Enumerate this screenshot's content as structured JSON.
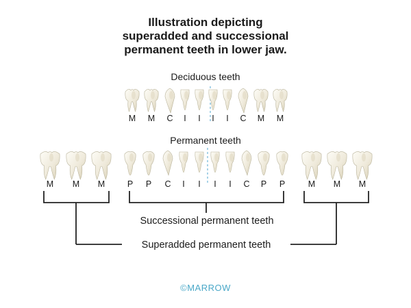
{
  "title": {
    "line1": "Illustration depicting",
    "line2": "superadded and successional",
    "line3": "permanent teeth in lower jaw."
  },
  "deciduous": {
    "label": "Deciduous teeth",
    "teeth": [
      {
        "type": "M",
        "kind": "molar"
      },
      {
        "type": "M",
        "kind": "molar"
      },
      {
        "type": "C",
        "kind": "canine"
      },
      {
        "type": "I",
        "kind": "incisor"
      },
      {
        "type": "I",
        "kind": "incisor"
      },
      {
        "type": "I",
        "kind": "incisor"
      },
      {
        "type": "I",
        "kind": "incisor"
      },
      {
        "type": "C",
        "kind": "canine"
      },
      {
        "type": "M",
        "kind": "molar"
      },
      {
        "type": "M",
        "kind": "molar"
      }
    ]
  },
  "permanent": {
    "label": "Permanent teeth",
    "left_molars": [
      {
        "type": "M",
        "kind": "bigmolar"
      },
      {
        "type": "M",
        "kind": "bigmolar"
      },
      {
        "type": "M",
        "kind": "bigmolar"
      }
    ],
    "middle": [
      {
        "type": "P",
        "kind": "premolar"
      },
      {
        "type": "P",
        "kind": "premolar"
      },
      {
        "type": "C",
        "kind": "canine"
      },
      {
        "type": "I",
        "kind": "incisor"
      },
      {
        "type": "I",
        "kind": "incisor"
      },
      {
        "type": "I",
        "kind": "incisor"
      },
      {
        "type": "I",
        "kind": "incisor"
      },
      {
        "type": "C",
        "kind": "canine"
      },
      {
        "type": "P",
        "kind": "premolar"
      },
      {
        "type": "P",
        "kind": "premolar"
      }
    ],
    "right_molars": [
      {
        "type": "M",
        "kind": "bigmolar"
      },
      {
        "type": "M",
        "kind": "bigmolar"
      },
      {
        "type": "M",
        "kind": "bigmolar"
      }
    ]
  },
  "groups": {
    "successional": "Successional permanent teeth",
    "superadded": "Superadded permanent teeth"
  },
  "watermark": "©MARROW",
  "colors": {
    "midline": "#6fb6d8",
    "watermark": "#4aa8c8",
    "enamel_light": "#fbfaf3",
    "enamel_dark": "#ddd6bd"
  }
}
